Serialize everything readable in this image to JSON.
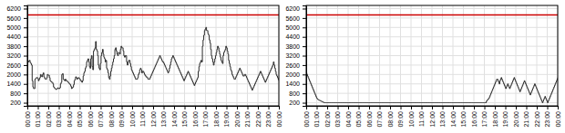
{
  "chart_data": [
    {
      "type": "line",
      "xlim": [
        0,
        24
      ],
      "xticks": [
        {
          "value": 0,
          "label": "00:00"
        },
        {
          "value": 1,
          "label": "01:00"
        },
        {
          "value": 2,
          "label": "02:00"
        },
        {
          "value": 3,
          "label": "03:00"
        },
        {
          "value": 4,
          "label": "04:00"
        },
        {
          "value": 5,
          "label": "05:00"
        },
        {
          "value": 6,
          "label": "06:00"
        },
        {
          "value": 7,
          "label": "07:00"
        },
        {
          "value": 8,
          "label": "08:00"
        },
        {
          "value": 9,
          "label": "09:00"
        },
        {
          "value": 10,
          "label": "10:00"
        },
        {
          "value": 11,
          "label": "11:00"
        },
        {
          "value": 12,
          "label": "12:00"
        },
        {
          "value": 13,
          "label": "13:00"
        },
        {
          "value": 14,
          "label": "14:00"
        },
        {
          "value": 15,
          "label": "15:00"
        },
        {
          "value": 16,
          "label": "16:00"
        },
        {
          "value": 17,
          "label": "17:00"
        },
        {
          "value": 18,
          "label": "18:00"
        },
        {
          "value": 19,
          "label": "19:00"
        },
        {
          "value": 20,
          "label": "20:00"
        },
        {
          "value": 21,
          "label": "21:00"
        },
        {
          "value": 22,
          "label": "22:00"
        },
        {
          "value": 23,
          "label": "23:00"
        },
        {
          "value": 24,
          "label": "00:00"
        }
      ],
      "ylim": [
        0,
        6400
      ],
      "yticks": [
        200,
        800,
        1400,
        2000,
        2600,
        3200,
        3800,
        4400,
        5000,
        5600,
        6200
      ],
      "grid": true,
      "reference_line": {
        "value": 5800,
        "color": "#cc0000"
      },
      "series": [
        {
          "color": "#2a2a2a",
          "line_style": "step",
          "values": [
            2900,
            2800,
            2850,
            2900,
            2750,
            2700,
            2600,
            1600,
            1200,
            1100,
            1100,
            1700,
            1750,
            1800,
            1800,
            1750,
            1600,
            1700,
            1800,
            2000,
            1900,
            1850,
            2000,
            2100,
            1850,
            1750,
            1700,
            1700,
            1800,
            2000,
            1950,
            1950,
            1800,
            1600,
            1550,
            1500,
            1500,
            1400,
            1200,
            1150,
            1100,
            1050,
            1050,
            1100,
            1150,
            1100,
            1100,
            1150,
            1400,
            1500,
            2000,
            2050,
            1700,
            1650,
            1600,
            1700,
            1600,
            1600,
            1550,
            1500,
            1450,
            1400,
            1350,
            1250,
            1100,
            1150,
            1200,
            1350,
            1600,
            1700,
            1850,
            1800,
            1700,
            1750,
            1800,
            1750,
            1700,
            1600,
            1600,
            1500,
            1600,
            1900,
            2100,
            2200,
            2400,
            2500,
            2800,
            2900,
            3000,
            2800,
            2500,
            2400,
            3000,
            3200,
            2500,
            2300,
            3500,
            3600,
            3700,
            4100,
            3600,
            3500,
            3200,
            2600,
            2400,
            2300,
            2700,
            3200,
            3400,
            3600,
            3300,
            3100,
            3000,
            2800,
            2900,
            2400,
            2300,
            2100,
            1800,
            1700,
            1900,
            2200,
            2400,
            2600,
            2800,
            3000,
            3200,
            3600,
            3700,
            3500,
            3300,
            3200,
            3400,
            3400,
            3300,
            3600,
            3800,
            3700,
            3700,
            3500,
            3200,
            3100,
            3200,
            3200,
            2800,
            2600,
            2800,
            2900,
            2900,
            2700,
            2500,
            2300,
            2200,
            2100,
            2000,
            1900,
            1800,
            1700,
            1700,
            1700,
            1800,
            2000,
            2100,
            2300,
            2400,
            2300,
            2100,
            2200,
            2200,
            2100,
            2000,
            1900,
            1900,
            1800,
            1800,
            1700,
            1700,
            1700,
            1800,
            1900,
            2000,
            2100,
            2200,
            2300,
            2400,
            2500,
            2600,
            2700,
            2800,
            2900,
            3000,
            3100,
            3200,
            3100,
            3000,
            2900,
            2800,
            2800,
            2700,
            2600,
            2500,
            2400,
            2300,
            2200,
            2100,
            2200,
            2400,
            2600,
            2800,
            3000,
            3100,
            3200,
            3100,
            3000,
            2900,
            2800,
            2700,
            2600,
            2500,
            2400,
            2300,
            2200,
            2100,
            2000,
            1900,
            1800,
            1700,
            1600,
            1700,
            1800,
            1900,
            2000,
            2100,
            2200,
            2100,
            2000,
            1900,
            1800,
            1700,
            1600,
            1500,
            1400,
            1300,
            1400,
            1500,
            1600,
            1700,
            1800,
            2200,
            2500,
            2700,
            2800,
            2900,
            2800,
            3800,
            4200,
            4500,
            4800,
            4900,
            5000,
            4800,
            4800,
            4600,
            4500,
            4200,
            4000,
            3600,
            3200,
            3000,
            2800,
            2600,
            2800,
            3000,
            3200,
            3400,
            3600,
            3800,
            3700,
            3500,
            3300,
            3100,
            2900,
            2800,
            2700,
            3200,
            3400,
            3500,
            3600,
            3800,
            3700,
            3500,
            3300,
            2900,
            2700,
            2500,
            2300,
            2200,
            2000,
            1900,
            1800,
            1700,
            1700,
            1800,
            1900,
            2000,
            2100,
            2200,
            2300,
            2400,
            2300,
            2200,
            2100,
            2000,
            1900,
            1900,
            2000,
            2000,
            1900,
            1800,
            1700,
            1600,
            1500,
            1400,
            1300,
            1200,
            1100,
            1000,
            1100,
            1200,
            1300,
            1400,
            1500,
            1600,
            1700,
            1800,
            1900,
            2000,
            2100,
            2200,
            2100,
            2000,
            1900,
            1800,
            1700,
            1600,
            1500,
            1600,
            1700,
            1800,
            1900,
            2000,
            2100,
            2200,
            2300,
            2400,
            2500,
            2600,
            2800,
            2600,
            2400,
            2200,
            2000,
            1900,
            1800,
            1700,
            1600
          ]
        }
      ]
    },
    {
      "type": "line",
      "xlim": [
        0,
        24
      ],
      "xticks": [
        {
          "value": 0,
          "label": "00:00"
        },
        {
          "value": 1,
          "label": "01:00"
        },
        {
          "value": 2,
          "label": "02:00"
        },
        {
          "value": 3,
          "label": "03:00"
        },
        {
          "value": 4,
          "label": "04:00"
        },
        {
          "value": 5,
          "label": "05:00"
        },
        {
          "value": 6,
          "label": "06:00"
        },
        {
          "value": 7,
          "label": "07:00"
        },
        {
          "value": 8,
          "label": "08:00"
        },
        {
          "value": 9,
          "label": "09:00"
        },
        {
          "value": 10,
          "label": "10:00"
        },
        {
          "value": 11,
          "label": "11:00"
        },
        {
          "value": 12,
          "label": "12:00"
        },
        {
          "value": 13,
          "label": "13:00"
        },
        {
          "value": 14,
          "label": "14:00"
        },
        {
          "value": 15,
          "label": "15:00"
        },
        {
          "value": 16,
          "label": "16:00"
        },
        {
          "value": 17,
          "label": "17:00"
        },
        {
          "value": 18,
          "label": "18:00"
        },
        {
          "value": 19,
          "label": "19:00"
        },
        {
          "value": 20,
          "label": "20:00"
        },
        {
          "value": 21,
          "label": "21:00"
        },
        {
          "value": 22,
          "label": "22:00"
        },
        {
          "value": 23,
          "label": "23:00"
        },
        {
          "value": 24,
          "label": "00:00"
        }
      ],
      "ylim": [
        0,
        6400
      ],
      "yticks": [
        200,
        800,
        1400,
        2000,
        2600,
        3200,
        3800,
        4400,
        5000,
        5600,
        6200
      ],
      "grid": true,
      "reference_line": {
        "value": 5800,
        "color": "#cc0000"
      },
      "series": [
        {
          "color": "#2a2a2a",
          "line_style": "step",
          "values": [
            2100,
            2000,
            1900,
            1800,
            1700,
            1600,
            1500,
            1400,
            1300,
            1200,
            1100,
            1000,
            900,
            800,
            700,
            600,
            500,
            450,
            400,
            380,
            360,
            340,
            320,
            300,
            280,
            260,
            240,
            220,
            200,
            200,
            200,
            200,
            200,
            200,
            200,
            200,
            200,
            200,
            200,
            200,
            200,
            200,
            200,
            200,
            200,
            200,
            200,
            200,
            200,
            200,
            200,
            200,
            200,
            200,
            200,
            200,
            200,
            200,
            200,
            200,
            200,
            200,
            200,
            200,
            200,
            200,
            200,
            200,
            200,
            200,
            200,
            200,
            200,
            200,
            200,
            200,
            200,
            200,
            200,
            200,
            200,
            200,
            200,
            200,
            200,
            200,
            200,
            200,
            200,
            200,
            200,
            200,
            200,
            200,
            200,
            200,
            200,
            200,
            200,
            200,
            200,
            200,
            200,
            200,
            200,
            200,
            200,
            200,
            200,
            200,
            200,
            200,
            200,
            200,
            200,
            200,
            200,
            200,
            200,
            200,
            200,
            200,
            200,
            200,
            200,
            200,
            200,
            200,
            200,
            200,
            200,
            200,
            200,
            200,
            200,
            200,
            200,
            200,
            200,
            200,
            200,
            200,
            200,
            200,
            200,
            200,
            200,
            200,
            200,
            200,
            200,
            200,
            200,
            200,
            200,
            200,
            200,
            200,
            200,
            200,
            200,
            200,
            200,
            200,
            200,
            200,
            200,
            200,
            200,
            200,
            200,
            200,
            200,
            200,
            200,
            200,
            200,
            200,
            200,
            200,
            200,
            200,
            200,
            200,
            200,
            200,
            200,
            200,
            200,
            200,
            200,
            200,
            200,
            200,
            200,
            200,
            200,
            200,
            200,
            200,
            200,
            200,
            200,
            200,
            200,
            200,
            200,
            200,
            200,
            200,
            200,
            200,
            200,
            200,
            200,
            200,
            200,
            200,
            200,
            200,
            200,
            200,
            200,
            200,
            200,
            200,
            200,
            200,
            200,
            200,
            200,
            200,
            200,
            200,
            200,
            200,
            200,
            200,
            200,
            200,
            200,
            200,
            200,
            200,
            200,
            200,
            200,
            200,
            200,
            200,
            200,
            200,
            200,
            200,
            200,
            200,
            200,
            200,
            200,
            200,
            200,
            200,
            200,
            200,
            200,
            200,
            200,
            200,
            200,
            200,
            200,
            200,
            200,
            200,
            200,
            200,
            200,
            200,
            200,
            200,
            300,
            350,
            400,
            450,
            500,
            600,
            700,
            800,
            900,
            1000,
            1100,
            1200,
            1300,
            1400,
            1500,
            1600,
            1700,
            1700,
            1600,
            1500,
            1400,
            1600,
            1700,
            1800,
            1700,
            1600,
            1500,
            1400,
            1300,
            1200,
            1100,
            1200,
            1300,
            1400,
            1300,
            1200,
            1100,
            1200,
            1300,
            1400,
            1500,
            1600,
            1700,
            1800,
            1700,
            1600,
            1500,
            1400,
            1300,
            1200,
            1100,
            1000,
            900,
            1000,
            1100,
            1200,
            1300,
            1400,
            1500,
            1600,
            1500,
            1400,
            1300,
            1200,
            1100,
            1000,
            900,
            800,
            700,
            800,
            900,
            1000,
            1100,
            1200,
            1300,
            1400,
            1300,
            1200,
            1100,
            1000,
            900,
            800,
            700,
            600,
            500,
            400,
            300,
            200,
            300,
            400,
            500,
            600,
            500,
            400,
            300,
            200,
            300,
            400,
            500,
            600,
            700,
            800,
            900,
            1000,
            1100,
            1200,
            1300,
            1400,
            1500,
            1600,
            1700,
            1800
          ]
        }
      ]
    }
  ]
}
